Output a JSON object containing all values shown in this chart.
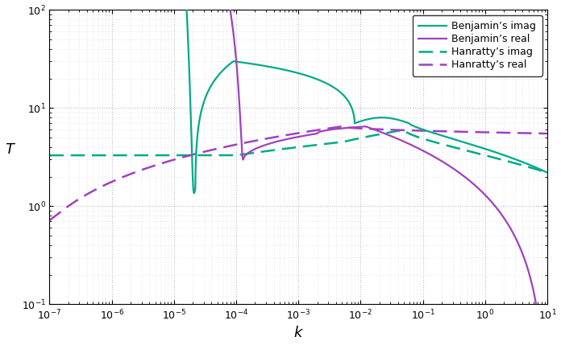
{
  "xlabel": "$k$",
  "ylabel": "$T$",
  "legend_entries": [
    {
      "label": "Benjamin’s real",
      "color": "#a040c0",
      "ls": "solid"
    },
    {
      "label": "Benjamin’s imag",
      "color": "#00aa88",
      "ls": "solid"
    },
    {
      "label": "Hanratty’s real",
      "color": "#a040c0",
      "ls": "dashed"
    },
    {
      "label": "Hanratty’s imag",
      "color": "#00aa88",
      "ls": "dashed"
    }
  ],
  "xlim": [
    1e-07,
    10
  ],
  "ylim": [
    0.1,
    100
  ],
  "grid_color": "#bbbbbb",
  "lw": 1.6
}
